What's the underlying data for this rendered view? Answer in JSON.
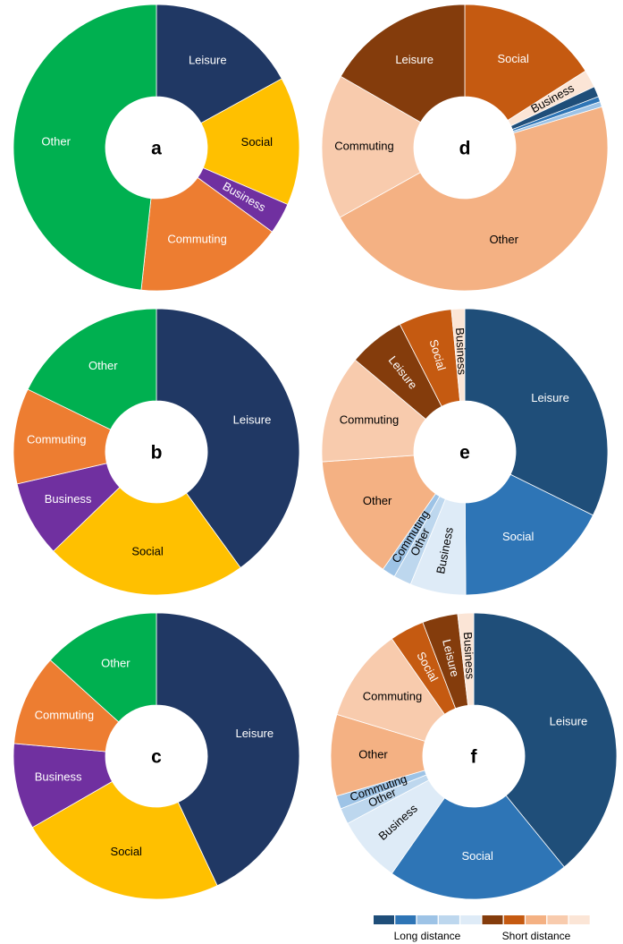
{
  "chart_data": [
    {
      "type": "pie",
      "center_label": "a",
      "categories": [
        "Leisure",
        "Social",
        "Business",
        "Commuting",
        "Other"
      ],
      "values": [
        17,
        14.5,
        3.5,
        16.7,
        48.3
      ],
      "colors": [
        "#203864",
        "#ffc000",
        "#7030a0",
        "#ed7d31",
        "#00b050"
      ]
    },
    {
      "type": "pie",
      "center_label": "b",
      "categories": [
        "Leisure",
        "Social",
        "Business",
        "Commuting",
        "Other"
      ],
      "values": [
        40,
        22.8,
        8.6,
        10.8,
        17.8
      ],
      "colors": [
        "#203864",
        "#ffc000",
        "#7030a0",
        "#ed7d31",
        "#00b050"
      ]
    },
    {
      "type": "pie",
      "center_label": "c",
      "categories": [
        "Leisure",
        "Social",
        "Business",
        "Commuting",
        "Other"
      ],
      "values": [
        43,
        23.7,
        9.7,
        10.3,
        13.3
      ],
      "colors": [
        "#203864",
        "#ffc000",
        "#7030a0",
        "#ed7d31",
        "#00b050"
      ]
    },
    {
      "type": "pie",
      "center_label": "d",
      "categories": [
        "Social",
        "Business",
        null,
        null,
        null,
        "Other",
        "Commuting",
        "Leisure"
      ],
      "values": [
        16,
        2,
        1.2,
        0.6,
        0.6,
        46.5,
        16.4,
        16.7
      ],
      "colors": [
        "#c55a11",
        "#fbe5d6",
        "#1f4e79",
        "#2e75b6",
        "#9dc3e6",
        "#f4b183",
        "#f8cbad",
        "#843c0c"
      ]
    },
    {
      "type": "pie",
      "center_label": "e",
      "categories": [
        "Leisure",
        "Social",
        "Business",
        "Other",
        "Commuting",
        "Other",
        "Commuting",
        "Leisure",
        "Social",
        "Business"
      ],
      "values": [
        32.3,
        17.6,
        6.3,
        2,
        1.5,
        14.2,
        12.2,
        6.4,
        6,
        1.5
      ],
      "colors": [
        "#1f4e79",
        "#2e75b6",
        "#deebf7",
        "#bdd7ee",
        "#9dc3e6",
        "#f4b183",
        "#f8cbad",
        "#843c0c",
        "#c55a11",
        "#fbe5d6"
      ]
    },
    {
      "type": "pie",
      "center_label": "f",
      "categories": [
        "Leisure",
        "Social",
        "Business",
        "Other",
        "Commuting",
        "Other",
        "Commuting",
        "Social",
        "Leisure",
        "Business"
      ],
      "values": [
        39.1,
        20.6,
        7.5,
        1.8,
        1.5,
        9.2,
        10.6,
        3.9,
        4,
        1.8
      ],
      "colors": [
        "#1f4e79",
        "#2e75b6",
        "#deebf7",
        "#bdd7ee",
        "#9dc3e6",
        "#f4b183",
        "#f8cbad",
        "#c55a11",
        "#843c0c",
        "#fbe5d6"
      ]
    }
  ],
  "legend": {
    "colors": [
      "#1f4e79",
      "#2e75b6",
      "#9dc3e6",
      "#bdd7ee",
      "#deebf7",
      "#843c0c",
      "#c55a11",
      "#f4b183",
      "#f8cbad",
      "#fbe5d6"
    ],
    "labels": [
      "Long distance",
      "Short distance"
    ]
  }
}
